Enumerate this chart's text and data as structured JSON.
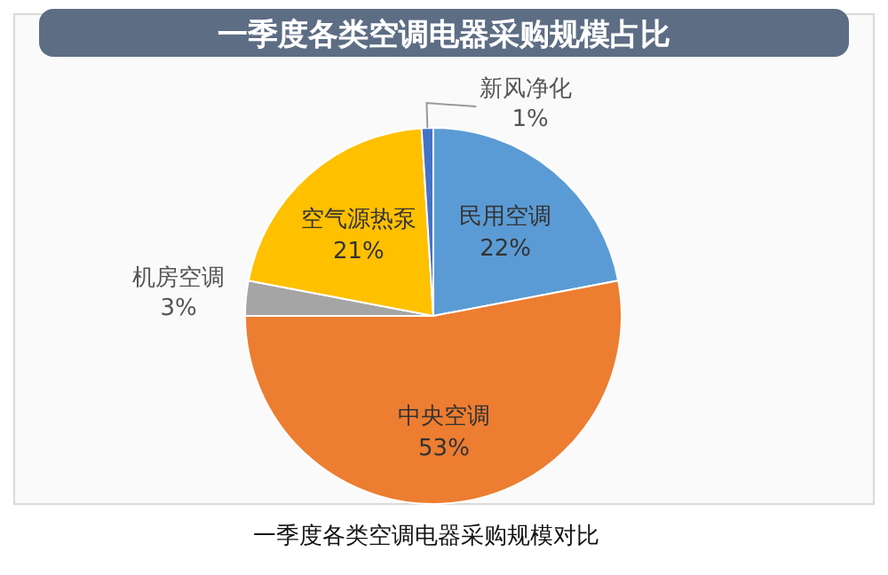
{
  "chart_data": {
    "type": "pie",
    "title": "一季度各类空调电器采购规模占比",
    "categories": [
      "民用空调",
      "中央空调",
      "机房空调",
      "空气源热泵",
      "新风净化"
    ],
    "values": [
      22,
      53,
      3,
      21,
      1
    ],
    "colors": [
      "#5b9bd5",
      "#ed7d31",
      "#a5a5a5",
      "#ffc000",
      "#4472c4"
    ],
    "value_labels": [
      "22%",
      "53%",
      "3%",
      "21%",
      "1%"
    ],
    "legend": false,
    "annotations": [
      "一季度各类空调电器采购规模对比"
    ]
  }
}
